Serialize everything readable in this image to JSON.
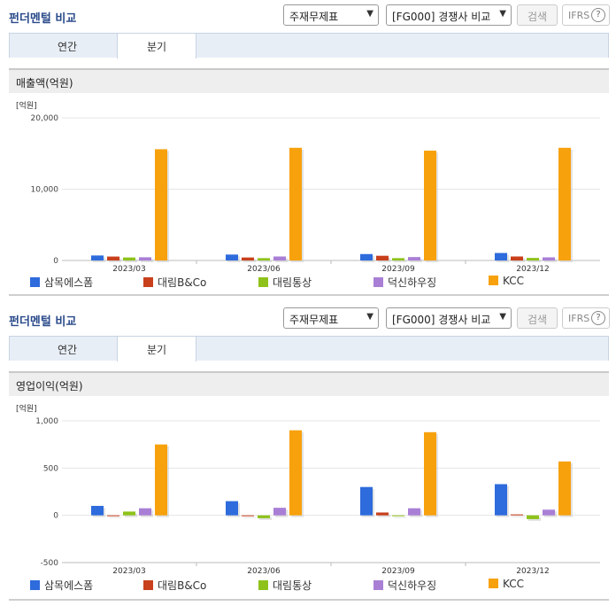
{
  "panels": [
    {
      "title": "펀더멘털 비교",
      "select_statement": "주재무제표",
      "select_compare": "[FG000] 경쟁사 비교",
      "search_label": "검색",
      "ifrs_label": "IFRS",
      "help_glyph": "?",
      "tabs": [
        "연간",
        "분기"
      ],
      "active_tab": "분기",
      "section_title": "매출액(억원)"
    },
    {
      "title": "펀더멘털 비교",
      "select_statement": "주재무제표",
      "select_compare": "[FG000] 경쟁사 비교",
      "search_label": "검색",
      "ifrs_label": "IFRS",
      "help_glyph": "?",
      "tabs": [
        "연간",
        "분기"
      ],
      "active_tab": "분기",
      "section_title": "영업이익(억원)"
    }
  ],
  "colors": [
    "#2e6bdc",
    "#c8401c",
    "#8ec21b",
    "#a97fd6",
    "#f7a10d"
  ],
  "chart_data": [
    {
      "type": "bar",
      "unit_label": "[억원]",
      "categories": [
        "2023/03",
        "2023/06",
        "2023/09",
        "2023/12"
      ],
      "ylim": [
        0,
        20000
      ],
      "yticks": [
        0,
        10000,
        20000
      ],
      "ytick_labels": [
        "0",
        "10,000",
        "20,000"
      ],
      "grid": true,
      "legend": "bottom",
      "series": [
        {
          "name": "삼목에스폼",
          "values": [
            700,
            830,
            900,
            1050
          ]
        },
        {
          "name": "대림B&Co",
          "values": [
            550,
            420,
            660,
            560
          ]
        },
        {
          "name": "대림통상",
          "values": [
            420,
            330,
            330,
            360
          ]
        },
        {
          "name": "덕신하우징",
          "values": [
            450,
            560,
            480,
            440
          ]
        },
        {
          "name": "KCC",
          "values": [
            15600,
            15800,
            15400,
            15800
          ]
        }
      ]
    },
    {
      "type": "bar",
      "unit_label": "[억원]",
      "categories": [
        "2023/03",
        "2023/06",
        "2023/09",
        "2023/12"
      ],
      "ylim": [
        -500,
        1000
      ],
      "yticks": [
        -500,
        0,
        500,
        1000
      ],
      "ytick_labels": [
        "-500",
        "0",
        "500",
        "1,000"
      ],
      "grid": true,
      "legend": "bottom",
      "series": [
        {
          "name": "삼목에스폼",
          "values": [
            100,
            150,
            300,
            330
          ]
        },
        {
          "name": "대림B&Co",
          "values": [
            0,
            0,
            30,
            10
          ]
        },
        {
          "name": "대림통상",
          "values": [
            40,
            -30,
            0,
            -40
          ]
        },
        {
          "name": "덕신하우징",
          "values": [
            75,
            80,
            75,
            60
          ]
        },
        {
          "name": "KCC",
          "values": [
            750,
            900,
            880,
            570
          ]
        }
      ]
    }
  ]
}
